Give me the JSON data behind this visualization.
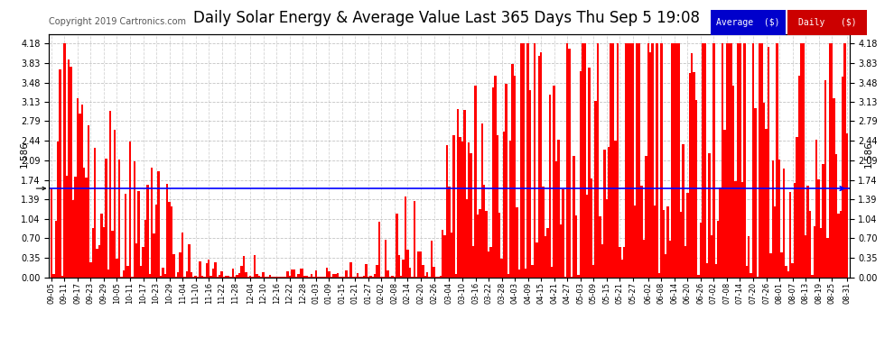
{
  "title": "Daily Solar Energy & Average Value Last 365 Days Thu Sep 5 19:08",
  "copyright": "Copyright 2019 Cartronics.com",
  "avg_value": 1.586,
  "bar_color": "#ff0000",
  "avg_line_color": "#0000ff",
  "legend_avg_label": "Average  ($)",
  "legend_daily_label": "Daily   ($)",
  "legend_avg_bg": "#0000cc",
  "legend_daily_bg": "#cc0000",
  "yticks": [
    0.0,
    0.35,
    0.7,
    1.04,
    1.39,
    1.74,
    2.09,
    2.44,
    2.79,
    3.13,
    3.48,
    3.83,
    4.18
  ],
  "ylim": [
    0.0,
    4.35
  ],
  "background_color": "#ffffff",
  "grid_color": "#aaaaaa",
  "title_fontsize": 12,
  "x_dates": [
    "09-05",
    "09-11",
    "09-17",
    "09-23",
    "09-29",
    "10-05",
    "10-11",
    "10-17",
    "10-23",
    "10-29",
    "11-04",
    "11-10",
    "11-16",
    "11-22",
    "11-28",
    "12-04",
    "12-10",
    "12-16",
    "12-22",
    "12-28",
    "01-03",
    "01-09",
    "01-15",
    "01-21",
    "01-27",
    "02-02",
    "02-08",
    "02-14",
    "02-20",
    "02-26",
    "03-04",
    "03-10",
    "03-16",
    "03-22",
    "03-28",
    "04-03",
    "04-09",
    "04-15",
    "04-21",
    "04-27",
    "05-03",
    "05-09",
    "05-15",
    "05-21",
    "05-27",
    "06-02",
    "06-08",
    "06-14",
    "06-20",
    "06-26",
    "07-02",
    "07-08",
    "07-14",
    "07-20",
    "07-26",
    "08-01",
    "08-07",
    "08-13",
    "08-19",
    "08-25",
    "08-31"
  ]
}
